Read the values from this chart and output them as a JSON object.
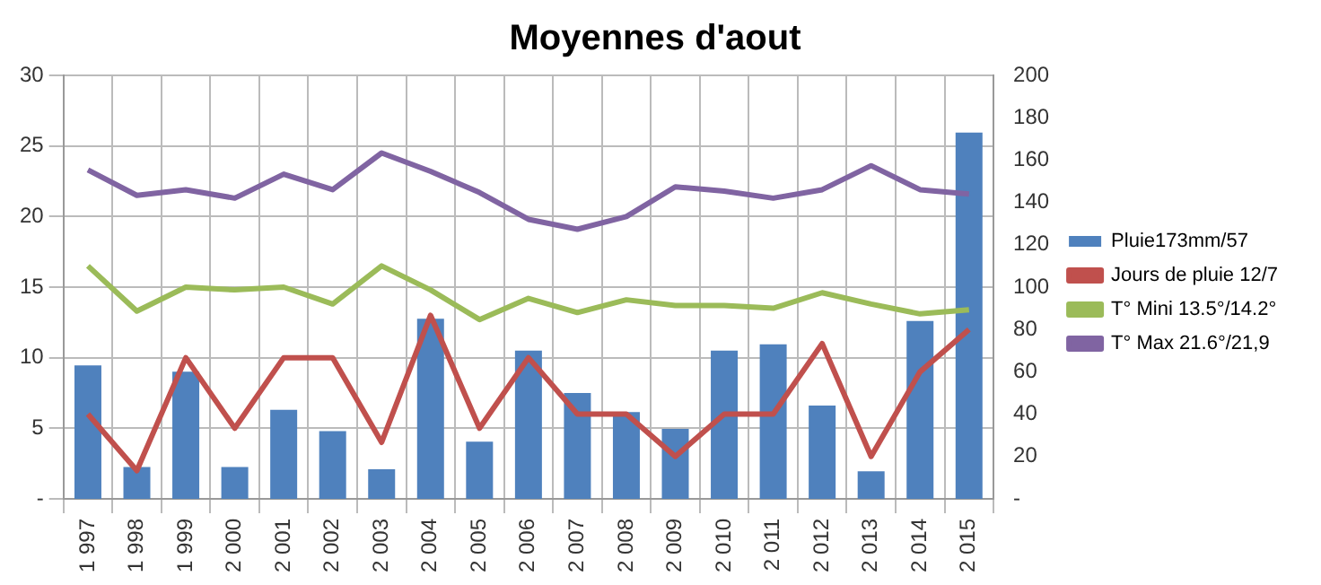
{
  "chart_data": {
    "type": "bar",
    "title": "Moyennes d'aout",
    "categories": [
      "1 997",
      "1 998",
      "1 999",
      "2 000",
      "2 001",
      "2 002",
      "2 003",
      "2 004",
      "2 005",
      "2 006",
      "2 007",
      "2 008",
      "2 009",
      "2 010",
      "2 011",
      "2 012",
      "2 013",
      "2 014",
      "2 015"
    ],
    "series": [
      {
        "name": "Pluie173mm/57",
        "axis": "y2",
        "color": "#4f81bd",
        "values": [
          63,
          15,
          60,
          15,
          42,
          32,
          14,
          85,
          27,
          70,
          50,
          41,
          33,
          70,
          73,
          44,
          13,
          84,
          173
        ]
      },
      {
        "name": "Jours de pluie 12/7",
        "type": "line",
        "color": "#c0504d",
        "values": [
          6,
          2,
          10,
          5,
          10,
          10,
          4,
          13,
          5,
          10,
          6,
          6,
          3,
          6,
          6,
          11,
          3,
          9,
          12
        ]
      },
      {
        "name": "T° Mini 13.5°/14.2°",
        "type": "line",
        "color": "#9bbb59",
        "values": [
          16.5,
          13.3,
          15,
          14.8,
          15,
          13.8,
          16.5,
          14.8,
          12.7,
          14.2,
          13.2,
          14.1,
          13.7,
          13.7,
          13.5,
          14.6,
          13.8,
          13.1,
          13.4
        ]
      },
      {
        "name": "T° Max 21.6°/21,9",
        "type": "line",
        "color": "#8064a2",
        "values": [
          23.3,
          21.5,
          21.9,
          21.3,
          23,
          21.9,
          24.5,
          23.2,
          21.7,
          19.8,
          19.1,
          20,
          22.1,
          21.8,
          21.3,
          21.9,
          23.6,
          21.9,
          21.6
        ]
      }
    ],
    "ylim": [
      0,
      30
    ],
    "yticks": [
      {
        "value": 0,
        "label": "-"
      },
      5,
      10,
      15,
      20,
      25,
      30
    ],
    "y2lim": [
      0,
      200
    ],
    "y2ticks": [
      {
        "value": 0,
        "label": "-"
      },
      20,
      40,
      60,
      80,
      100,
      120,
      140,
      160,
      180,
      200
    ],
    "grid": true,
    "legend": "right",
    "marker": "none"
  }
}
